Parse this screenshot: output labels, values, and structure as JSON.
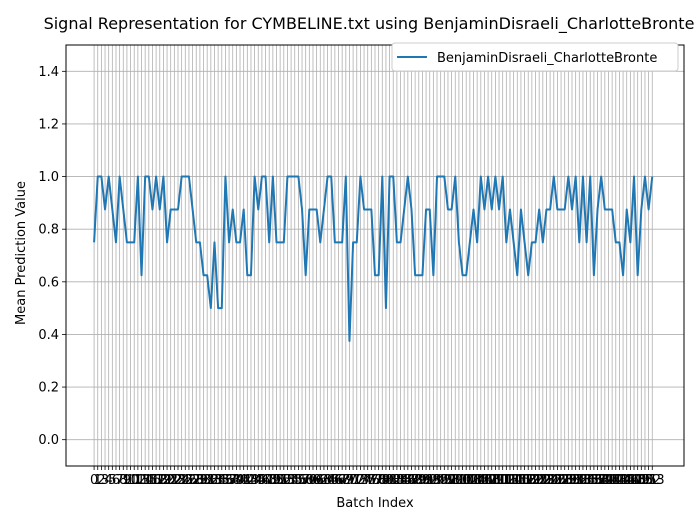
{
  "chart_data": {
    "type": "line",
    "title": "Signal Representation for CYMBELINE.txt using BenjaminDisraeli_CharlotteBronte",
    "xlabel": "Batch Index",
    "ylabel": "Mean Prediction Value",
    "ylim": [
      -0.1,
      1.5
    ],
    "xlim": [
      -7.7,
      161.7
    ],
    "yticks": [
      0.0,
      0.2,
      0.4,
      0.6,
      0.8,
      1.0,
      1.2,
      1.4
    ],
    "ytick_labels": [
      "0.0",
      "0.2",
      "0.4",
      "0.6",
      "0.8",
      "1.0",
      "1.2",
      "1.4"
    ],
    "grid": true,
    "legend_position": "upper right",
    "series": [
      {
        "name": "BenjaminDisraeli_CharlotteBronte",
        "color": "#1f77b4",
        "values": [
          0.75,
          1.0,
          1.0,
          0.875,
          1.0,
          0.875,
          0.75,
          1.0,
          0.875,
          0.75,
          0.75,
          0.75,
          1.0,
          0.625,
          1.0,
          1.0,
          0.875,
          1.0,
          0.875,
          1.0,
          0.75,
          0.875,
          0.875,
          0.875,
          1.0,
          1.0,
          1.0,
          0.875,
          0.75,
          0.75,
          0.625,
          0.625,
          0.5,
          0.75,
          0.5,
          0.5,
          1.0,
          0.75,
          0.875,
          0.75,
          0.75,
          0.875,
          0.625,
          0.625,
          1.0,
          0.875,
          1.0,
          1.0,
          0.75,
          1.0,
          0.75,
          0.75,
          0.75,
          1.0,
          1.0,
          1.0,
          1.0,
          0.875,
          0.625,
          0.875,
          0.875,
          0.875,
          0.75,
          0.875,
          1.0,
          1.0,
          0.75,
          0.75,
          0.75,
          1.0,
          0.375,
          0.75,
          0.75,
          1.0,
          0.875,
          0.875,
          0.875,
          0.625,
          0.625,
          1.0,
          0.5,
          1.0,
          1.0,
          0.75,
          0.75,
          0.875,
          1.0,
          0.875,
          0.625,
          0.625,
          0.625,
          0.875,
          0.875,
          0.625,
          1.0,
          1.0,
          1.0,
          0.875,
          0.875,
          1.0,
          0.75,
          0.625,
          0.625,
          0.75,
          0.875,
          0.75,
          1.0,
          0.875,
          1.0,
          0.875,
          1.0,
          0.875,
          1.0,
          0.75,
          0.875,
          0.75,
          0.625,
          0.875,
          0.75,
          0.625,
          0.75,
          0.75,
          0.875,
          0.75,
          0.875,
          0.875,
          1.0,
          0.875,
          0.875,
          0.875,
          1.0,
          0.875,
          1.0,
          0.75,
          1.0,
          0.75,
          1.0,
          0.625,
          0.875,
          1.0,
          0.875,
          0.875,
          0.875,
          0.75,
          0.75,
          0.625,
          0.875,
          0.75,
          1.0,
          0.625,
          0.875,
          1.0,
          0.875,
          1.0
        ]
      }
    ]
  }
}
